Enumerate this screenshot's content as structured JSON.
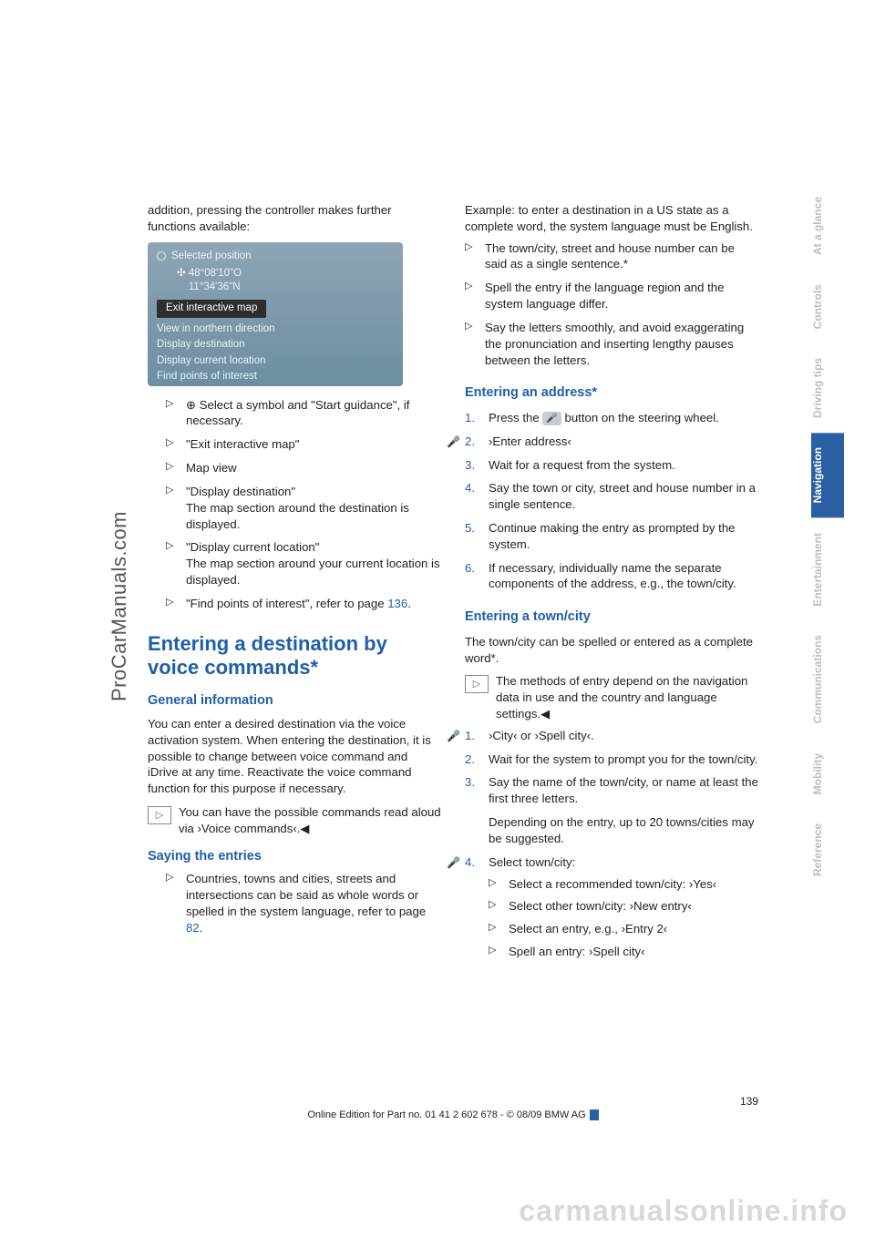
{
  "watermarks": {
    "left": "ProCarManuals.com",
    "bottom": "carmanualsonline.info"
  },
  "tabs": [
    {
      "label": "At a glance",
      "active": false
    },
    {
      "label": "Controls",
      "active": false
    },
    {
      "label": "Driving tips",
      "active": false
    },
    {
      "label": "Navigation",
      "active": true
    },
    {
      "label": "Entertainment",
      "active": false
    },
    {
      "label": "Communications",
      "active": false
    },
    {
      "label": "Mobility",
      "active": false
    },
    {
      "label": "Reference",
      "active": false
    }
  ],
  "left": {
    "intro": "addition, pressing the controller makes further functions available:",
    "screenshot": {
      "header": "Selected position",
      "coord1": "48°08'10\"O",
      "coord2": "11°34'36\"N",
      "selected": "Exit interactive map",
      "rows": [
        "View in northern direction",
        "Display destination",
        "Display current location",
        "Find points of interest"
      ]
    },
    "bullets": [
      {
        "pre": "",
        "icon": "⊕",
        "text": " Select a symbol and \"Start guidance\", if necessary."
      },
      {
        "text": "\"Exit interactive map\""
      },
      {
        "text": "Map view"
      },
      {
        "text": "\"Display destination\"",
        "sub": "The map section around the destination is displayed."
      },
      {
        "text": "\"Display current location\"",
        "sub": "The map section around your current location is displayed."
      },
      {
        "text": "\"Find points of interest\", refer to page ",
        "link": "136",
        "after": "."
      }
    ],
    "h1": "Entering a destination by voice commands*",
    "h2_general": "General information",
    "general_para": "You can enter a desired destination via the voice activation system. When entering the destination, it is possible to change between voice command and iDrive at any time. Reactivate the voice command function for this purpose if necessary.",
    "info1": "You can have the possible commands read aloud via ›Voice commands‹.◀",
    "h2_saying": "Saying the entries",
    "saying_bullets": [
      {
        "text": "Countries, towns and cities, streets and intersections can be said as whole words or spelled in the system language, refer to page ",
        "link": "82",
        "after": "."
      }
    ]
  },
  "right": {
    "top_para": "Example: to enter a destination in a US state as a complete word, the system language must be English.",
    "top_bullets": [
      {
        "text": "The town/city, street and house number can be said as a single sentence.*"
      },
      {
        "text": "Spell the entry if the language region and the system language differ."
      },
      {
        "text": "Say the letters smoothly, and avoid exaggerating the pronunciation and inserting lengthy pauses between the letters."
      }
    ],
    "h2_addr": "Entering an address*",
    "addr_steps": [
      {
        "n": "1.",
        "text": "Press the ",
        "btn": "🎤",
        "after": " button on the steering wheel."
      },
      {
        "n": "2.",
        "voice": true,
        "text": "›Enter address‹"
      },
      {
        "n": "3.",
        "text": "Wait for a request from the system."
      },
      {
        "n": "4.",
        "text": "Say the town or city, street and house number in a single sentence."
      },
      {
        "n": "5.",
        "text": "Continue making the entry as prompted by the system."
      },
      {
        "n": "6.",
        "text": "If necessary, individually name the separate components of the address, e.g., the town/city."
      }
    ],
    "h2_town": "Entering a town/city",
    "town_para": "The town/city can be spelled or entered as a complete word*.",
    "info2": "The methods of entry depend on the navigation data in use and the country and language settings.◀",
    "town_steps": [
      {
        "n": "1.",
        "voice": true,
        "text": "›City‹ or ›Spell city‹."
      },
      {
        "n": "2.",
        "text": "Wait for the system to prompt you for the town/city."
      },
      {
        "n": "3.",
        "text": "Say the name of the town/city, or name at least the first three letters.",
        "extra": "Depending on the entry, up to 20 towns/cities may be suggested."
      },
      {
        "n": "4.",
        "voice": true,
        "text": "Select town/city:",
        "subs": [
          "Select a recommended town/city: ›Yes‹",
          "Select other town/city: ›New entry‹",
          "Select an entry, e.g., ›Entry 2‹",
          "Spell an entry: ›Spell city‹"
        ]
      }
    ]
  },
  "footer": {
    "page": "139",
    "line": "Online Edition for Part no. 01 41 2 602 678 - © 08/09 BMW AG"
  }
}
